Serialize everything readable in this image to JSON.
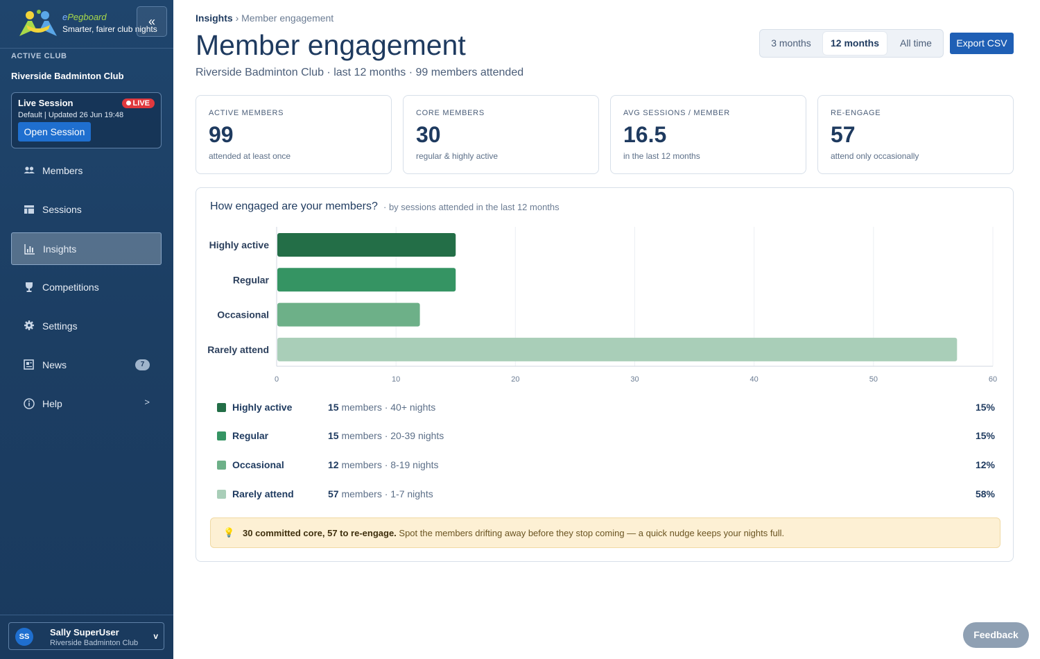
{
  "brand": {
    "name_prefix": "e",
    "name_rest": "Pegboard",
    "tagline": "Smarter, fairer club nights",
    "collapse_glyph": "«"
  },
  "sidebar": {
    "club_label": "ACTIVE CLUB",
    "club_name": "Riverside Badminton Club",
    "live": {
      "title": "Live Session",
      "badge": "LIVE",
      "sub": "Default | Updated 26 Jun 19:48",
      "button": "Open Session"
    },
    "items": [
      {
        "label": "Members",
        "icon": "members-icon"
      },
      {
        "label": "Sessions",
        "icon": "sessions-icon"
      },
      {
        "label": "Insights",
        "icon": "insights-icon",
        "active": true
      },
      {
        "label": "Competitions",
        "icon": "trophy-icon"
      },
      {
        "label": "Settings",
        "icon": "gear-icon"
      },
      {
        "label": "News",
        "icon": "news-icon",
        "badge": "7"
      },
      {
        "label": "Help",
        "icon": "help-icon",
        "chevron": ">"
      }
    ],
    "user": {
      "initials": "SS",
      "name": "Sally SuperUser",
      "club": "Riverside Badminton Club",
      "chevron": "v"
    }
  },
  "header": {
    "breadcrumb_root": "Insights",
    "breadcrumb_sep": "›",
    "breadcrumb_current": "Member engagement",
    "title": "Member engagement",
    "subtitle": "Riverside Badminton Club · last 12 months · 99 members attended",
    "ranges": [
      "3 months",
      "12 months",
      "All time"
    ],
    "active_range": "12 months",
    "export_label": "Export CSV"
  },
  "stats": [
    {
      "label": "ACTIVE MEMBERS",
      "value": "99",
      "sub": "attended at least once"
    },
    {
      "label": "CORE MEMBERS",
      "value": "30",
      "sub": "regular & highly active"
    },
    {
      "label": "AVG SESSIONS / MEMBER",
      "value": "16.5",
      "sub": "in the last 12 months"
    },
    {
      "label": "RE-ENGAGE",
      "value": "57",
      "sub": "attend only occasionally"
    }
  ],
  "panel": {
    "title": "How engaged are your members?",
    "subtitle": "· by sessions attended in the last 12 months"
  },
  "chart_data": {
    "type": "bar",
    "orientation": "horizontal",
    "categories": [
      "Highly active",
      "Regular",
      "Occasional",
      "Rarely attend"
    ],
    "values": [
      15,
      15,
      12,
      57
    ],
    "colors": [
      "#236e47",
      "#359463",
      "#6db088",
      "#a9ceb8"
    ],
    "xlim": [
      0,
      60
    ],
    "xticks": [
      0,
      10,
      20,
      30,
      40,
      50,
      60
    ],
    "grid": true
  },
  "legend": [
    {
      "name": "Highly active",
      "count": "15",
      "desc": " members · 40+ nights",
      "pct": "15%",
      "color": "#236e47"
    },
    {
      "name": "Regular",
      "count": "15",
      "desc": " members · 20-39 nights",
      "pct": "15%",
      "color": "#359463"
    },
    {
      "name": "Occasional",
      "count": "12",
      "desc": " members · 8-19 nights",
      "pct": "12%",
      "color": "#6db088"
    },
    {
      "name": "Rarely attend",
      "count": "57",
      "desc": " members · 1-7 nights",
      "pct": "58%",
      "color": "#a9ceb8"
    }
  ],
  "callout": {
    "icon": "lightbulb-icon",
    "bold": "30 committed core, 57 to re-engage.",
    "text": " Spot the members drifting away before they stop coming — a quick nudge keeps your nights full."
  },
  "feedback_label": "Feedback"
}
